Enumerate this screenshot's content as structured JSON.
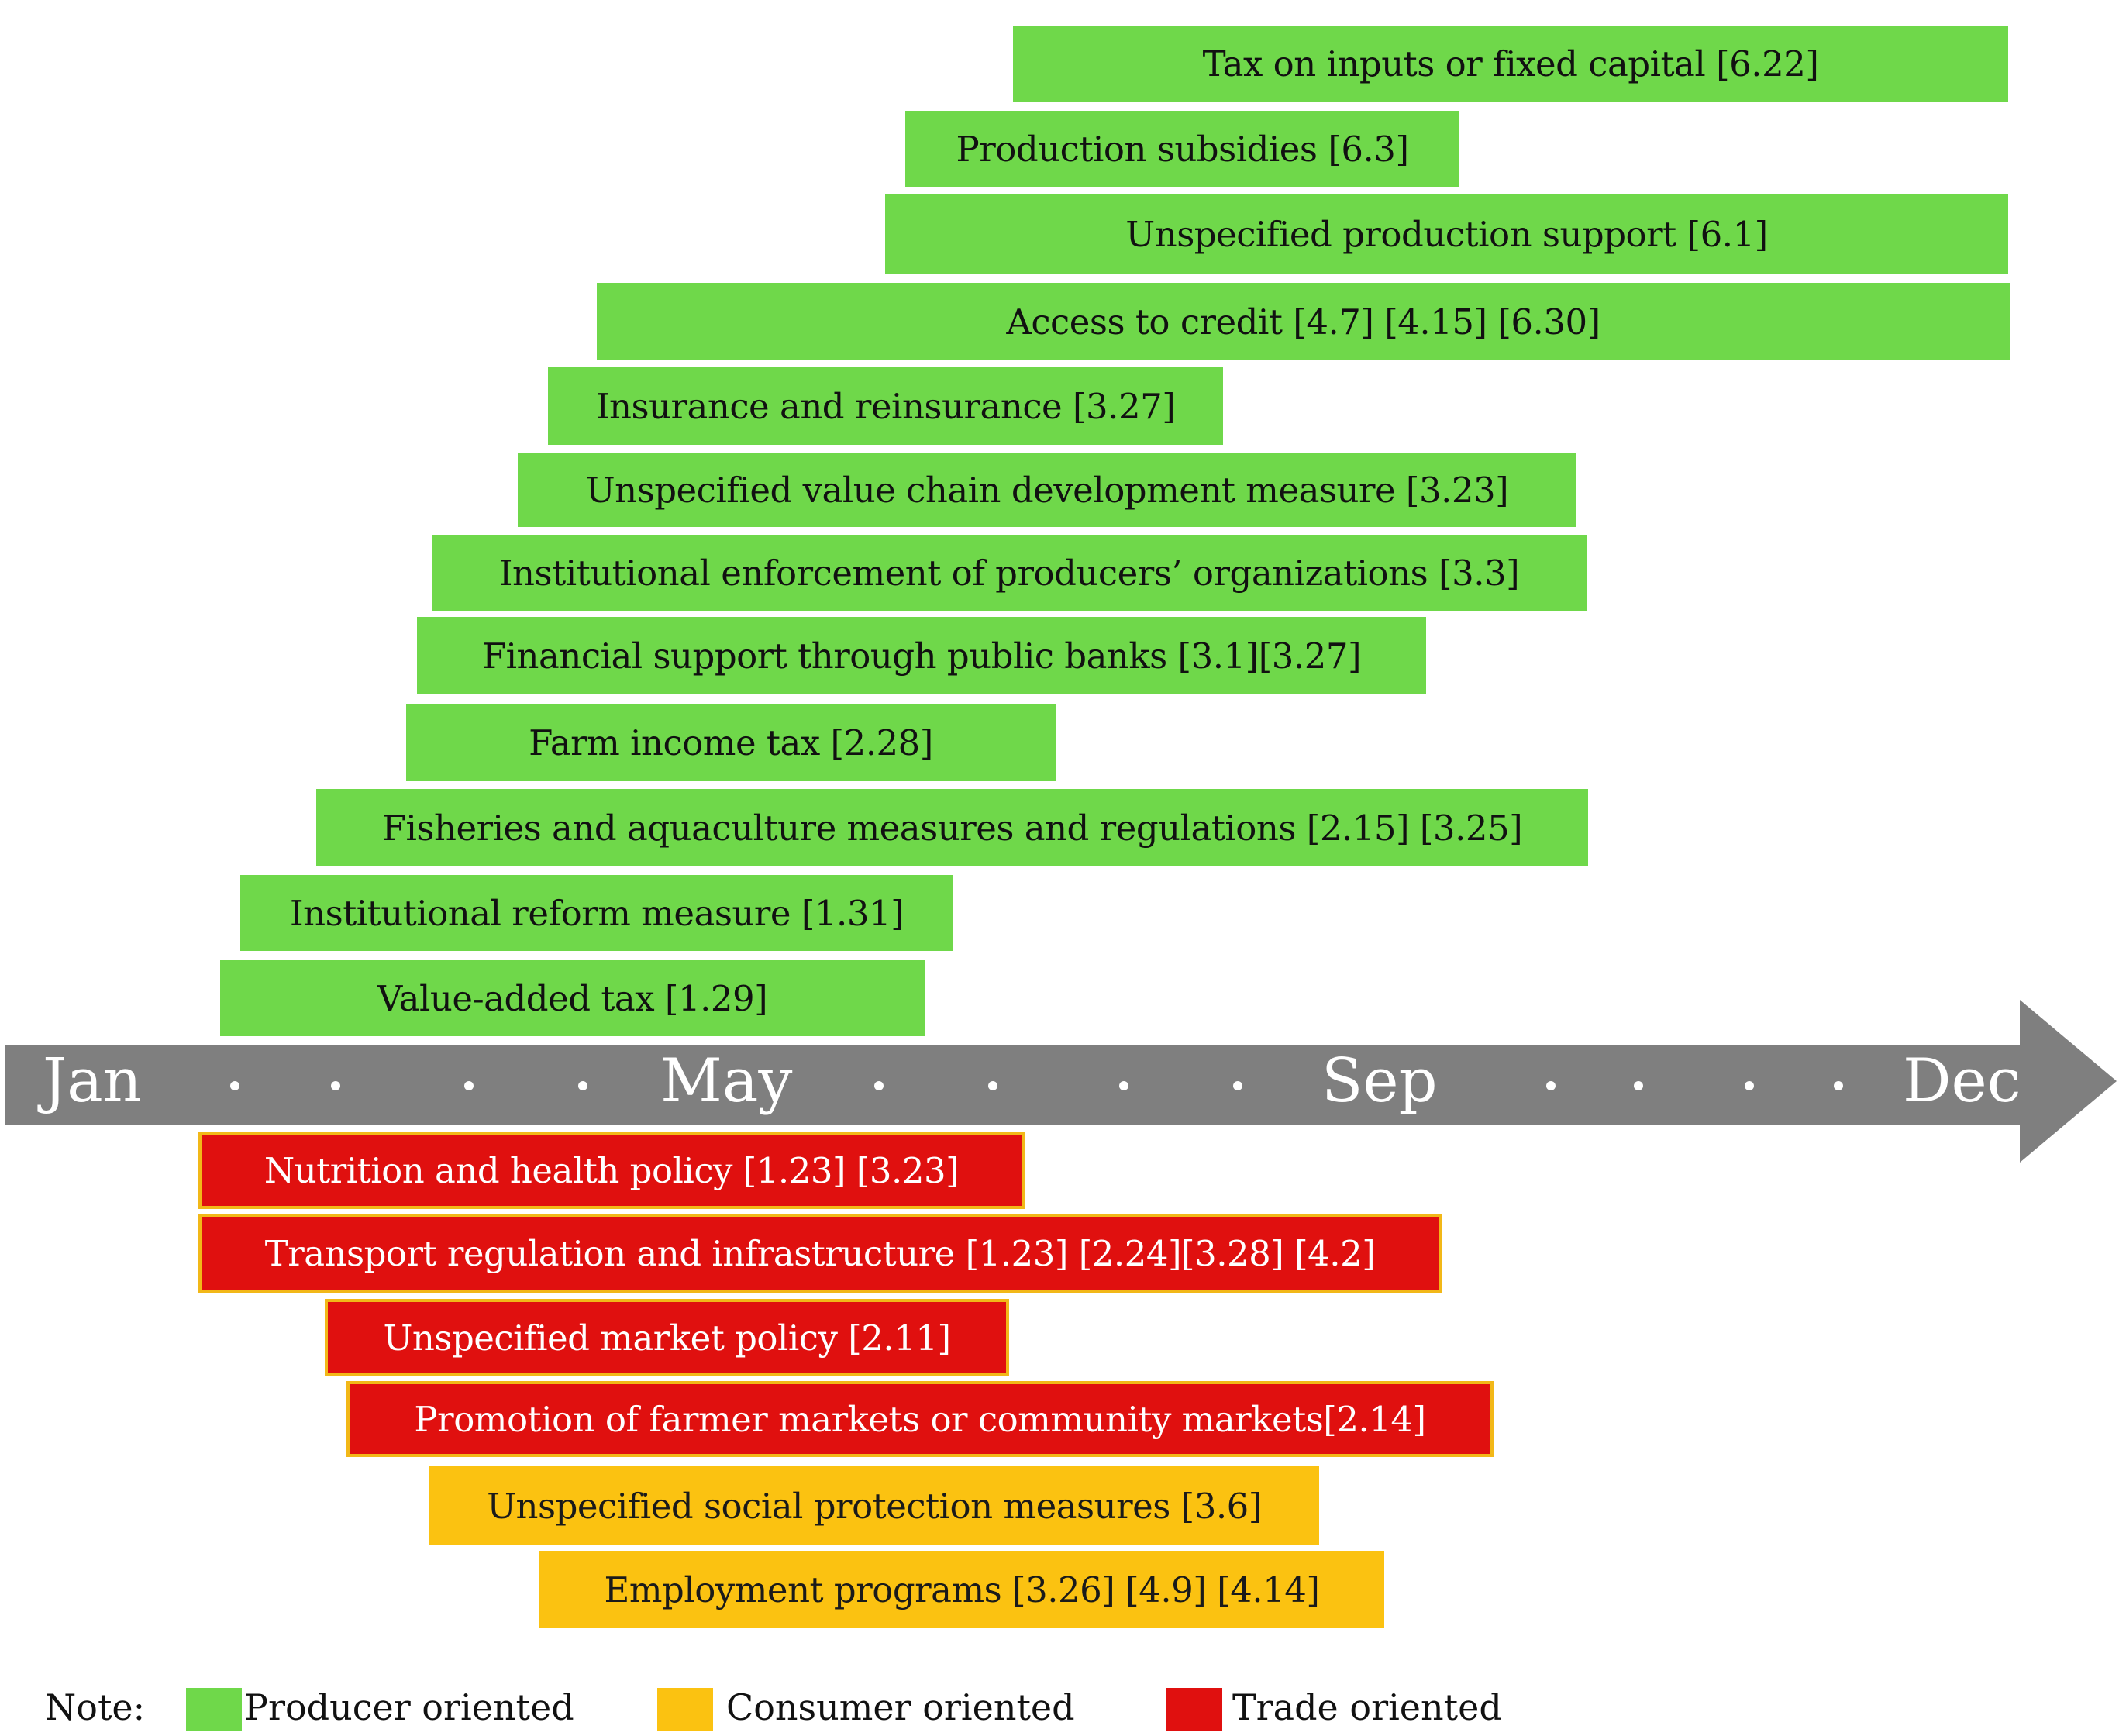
{
  "timeline": {
    "months": [
      "Jan",
      "May",
      "Sep",
      "Dec"
    ],
    "dot_count_between": 4
  },
  "producer_measures": [
    "Tax on inputs or fixed capital [6.22]",
    "Production subsidies [6.3]",
    "Unspecified production support [6.1]",
    "Access to credit [4.7] [4.15] [6.30]",
    "Insurance and reinsurance [3.27]",
    "Unspecified value chain development measure [3.23]",
    "Institutional enforcement of producers’ organizations [3.3]",
    "Financial support through public banks [3.1][3.27]",
    "Farm income tax [2.28]",
    "Fisheries and aquaculture measures and regulations [2.15] [3.25]",
    "Institutional reform measure [1.31]",
    "Value-added tax [1.29]"
  ],
  "trade_measures": [
    "Nutrition and health policy [1.23] [3.23]",
    "Transport regulation and infrastructure [1.23] [2.24][3.28] [4.2]",
    "Unspecified market policy [2.11]",
    "Promotion of farmer markets or community markets[2.14]"
  ],
  "consumer_measures": [
    "Unspecified social protection measures [3.6]",
    "Employment programs [3.26] [4.9] [4.14]"
  ],
  "legend": {
    "note_label": "Note:",
    "producer_label": "Producer oriented",
    "consumer_label": "Consumer oriented",
    "trade_label": "Trade oriented"
  },
  "colors": {
    "producer": "#6fd84a",
    "consumer": "#fbc211",
    "trade": "#e0100f",
    "timeline": "#7f7f7f"
  }
}
